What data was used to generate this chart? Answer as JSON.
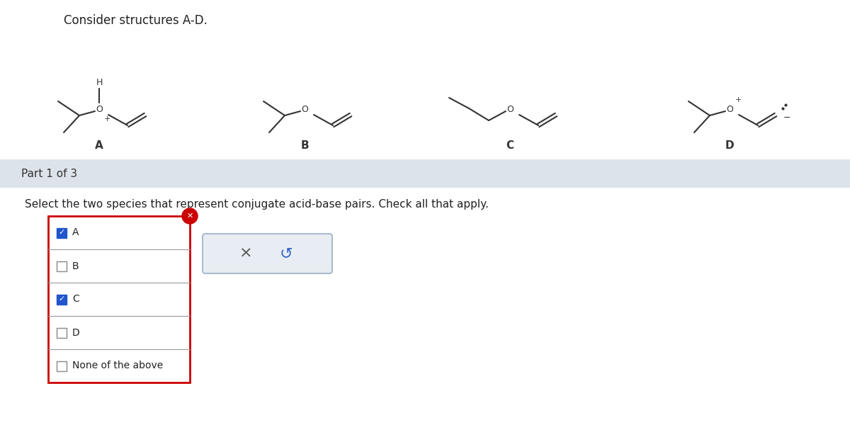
{
  "title": "Consider structures A-D.",
  "part_label": "Part 1 of 3",
  "question": "Select the two species that represent conjugate acid-base pairs. Check all that apply.",
  "checkboxes": [
    {
      "label": "A",
      "checked": true
    },
    {
      "label": "B",
      "checked": false
    },
    {
      "label": "C",
      "checked": true
    },
    {
      "label": "D",
      "checked": false
    },
    {
      "label": "None of the above",
      "checked": false
    }
  ],
  "structure_labels": [
    "A",
    "B",
    "C",
    "D"
  ],
  "bg_color": "#ffffff",
  "part_bg_color": "#dde3ea",
  "checkbox_border": "#cc0000",
  "checked_color": "#2255cc",
  "structure_color": "#333333",
  "font_size_title": 12,
  "font_size_labels": 11,
  "font_size_question": 11
}
